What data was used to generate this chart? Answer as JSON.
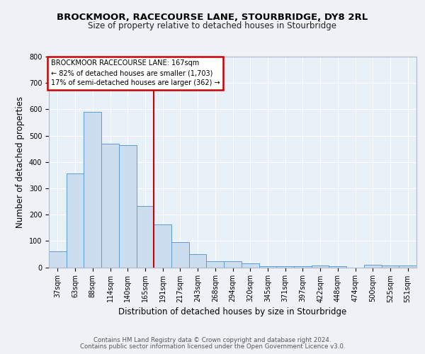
{
  "title1": "BROCKMOOR, RACECOURSE LANE, STOURBRIDGE, DY8 2RL",
  "title2": "Size of property relative to detached houses in Stourbridge",
  "xlabel": "Distribution of detached houses by size in Stourbridge",
  "ylabel": "Number of detached properties",
  "categories": [
    "37sqm",
    "63sqm",
    "88sqm",
    "114sqm",
    "140sqm",
    "165sqm",
    "191sqm",
    "217sqm",
    "243sqm",
    "268sqm",
    "294sqm",
    "320sqm",
    "345sqm",
    "371sqm",
    "397sqm",
    "422sqm",
    "448sqm",
    "474sqm",
    "500sqm",
    "525sqm",
    "551sqm"
  ],
  "values": [
    60,
    357,
    590,
    468,
    465,
    233,
    163,
    96,
    50,
    22,
    22,
    16,
    5,
    5,
    5,
    8,
    5,
    0,
    10,
    8,
    8
  ],
  "bar_color": "#ccddef",
  "bar_edge_color": "#5b9bd5",
  "red_line_x": 5.5,
  "red_line_color": "#cc0000",
  "annotation_line1": "BROCKMOOR RACECOURSE LANE: 167sqm",
  "annotation_line2": "← 82% of detached houses are smaller (1,703)",
  "annotation_line3": "17% of semi-detached houses are larger (362) →",
  "ylim": [
    0,
    800
  ],
  "yticks": [
    0,
    100,
    200,
    300,
    400,
    500,
    600,
    700,
    800
  ],
  "footer1": "Contains HM Land Registry data © Crown copyright and database right 2024.",
  "footer2": "Contains public sector information licensed under the Open Government Licence v3.0.",
  "bg_color": "#eef2f7",
  "plot_bg_color": "#e8f0f8",
  "grid_color": "#ffffff",
  "title_fontsize": 9.5,
  "subtitle_fontsize": 8.5,
  "tick_fontsize": 7,
  "label_fontsize": 8.5,
  "footer_fontsize": 6.2,
  "annot_fontsize": 7.0
}
